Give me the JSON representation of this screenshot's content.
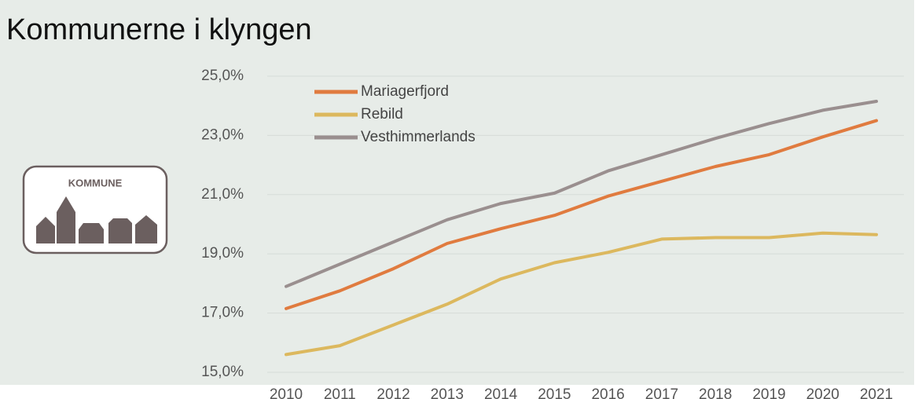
{
  "icon_label": "KOMMUNE",
  "chart_data": {
    "type": "line",
    "title": "Kommunerne i klyngen",
    "categories": [
      "2010",
      "2011",
      "2012",
      "2013",
      "2014",
      "2015",
      "2016",
      "2017",
      "2018",
      "2019",
      "2020",
      "2021"
    ],
    "series": [
      {
        "name": "Mariagerfjord",
        "color": "#e07b3f",
        "values": [
          17.15,
          17.75,
          18.5,
          19.35,
          19.85,
          20.3,
          20.95,
          21.45,
          21.95,
          22.35,
          22.95,
          23.5
        ]
      },
      {
        "name": "Rebild",
        "color": "#dcb85e",
        "values": [
          15.6,
          15.9,
          16.6,
          17.3,
          18.15,
          18.7,
          19.05,
          19.5,
          19.55,
          19.55,
          19.7,
          19.65
        ]
      },
      {
        "name": "Vesthimmerlands",
        "color": "#9a8f8f",
        "values": [
          17.9,
          18.65,
          19.4,
          20.15,
          20.7,
          21.05,
          21.8,
          22.35,
          22.9,
          23.4,
          23.85,
          24.15
        ]
      }
    ],
    "ylim": [
      15,
      25
    ],
    "yticks": [
      {
        "value": 15,
        "label": "15,0%"
      },
      {
        "value": 17,
        "label": "17,0%"
      },
      {
        "value": 19,
        "label": "19,0%"
      },
      {
        "value": 21,
        "label": "21,0%"
      },
      {
        "value": 23,
        "label": "23,0%"
      },
      {
        "value": 25,
        "label": "25,0%"
      }
    ],
    "grid": true,
    "legend": "top-left"
  }
}
